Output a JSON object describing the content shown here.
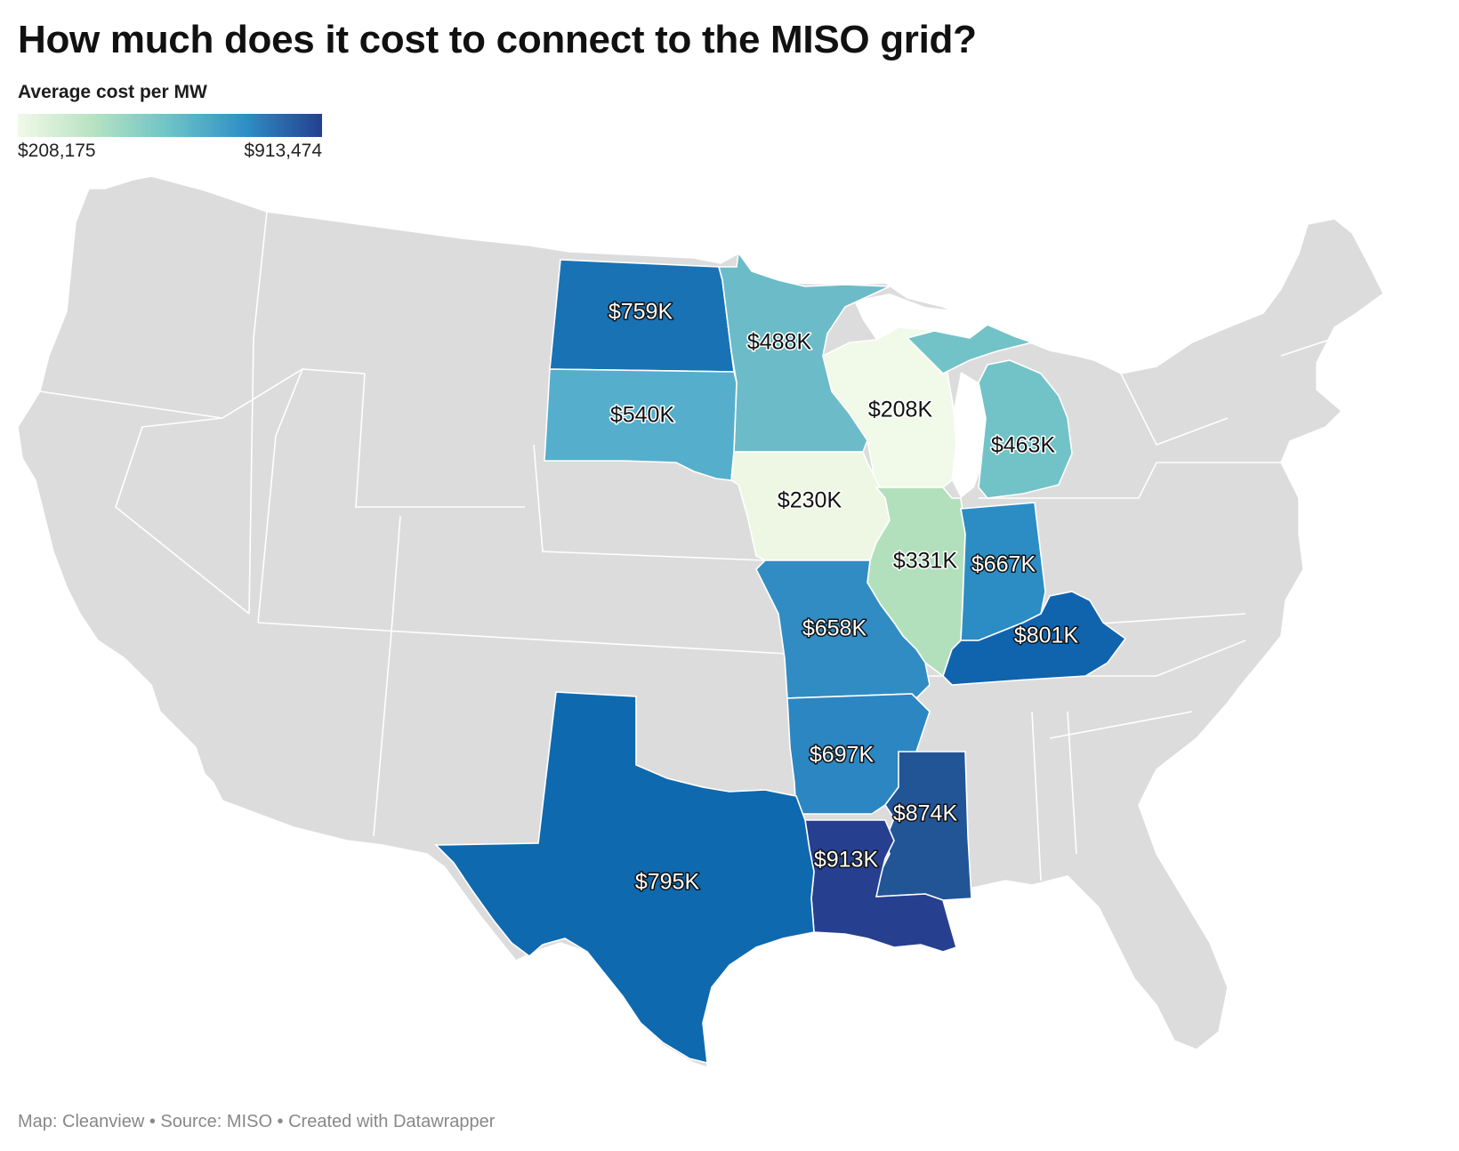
{
  "title": "How much does it cost to connect to the MISO grid?",
  "legend": {
    "title": "Average cost per MW",
    "min_label": "$208,175",
    "max_label": "$913,474",
    "colors": [
      "#f1f9e8",
      "#b7e2c2",
      "#6bc3c7",
      "#2e8ec6",
      "#253f8f"
    ]
  },
  "colors": {
    "base_fill": "#dcdcdc",
    "border": "#ffffff",
    "label_dark": "#111111",
    "label_light": "#ffffff"
  },
  "states": [
    {
      "name": "North Dakota",
      "label": "$759K",
      "color": "#1872b4"
    },
    {
      "name": "Minnesota",
      "label": "$488K",
      "color": "#6bbcc8"
    },
    {
      "name": "South Dakota",
      "label": "$540K",
      "color": "#55aecb"
    },
    {
      "name": "Wisconsin",
      "label": "$208K",
      "color": "#f1f9e8"
    },
    {
      "name": "Michigan",
      "label": "$463K",
      "color": "#72c3c8"
    },
    {
      "name": "Iowa",
      "label": "$230K",
      "color": "#eef7e3"
    },
    {
      "name": "Illinois",
      "label": "$331K",
      "color": "#b3e0bc"
    },
    {
      "name": "Indiana",
      "label": "$667K",
      "color": "#2b8dc3"
    },
    {
      "name": "Missouri",
      "label": "$658K",
      "color": "#318cc3"
    },
    {
      "name": "Kentucky",
      "label": "$801K",
      "color": "#0f64ad"
    },
    {
      "name": "Arkansas",
      "label": "$697K",
      "color": "#2c86c1"
    },
    {
      "name": "Mississippi",
      "label": "$874K",
      "color": "#225596"
    },
    {
      "name": "Louisiana",
      "label": "$913K",
      "color": "#263f8e"
    },
    {
      "name": "Texas",
      "label": "$795K",
      "color": "#0e69ae"
    }
  ],
  "footer": "Map: Cleanview • Source: MISO • Created with Datawrapper"
}
